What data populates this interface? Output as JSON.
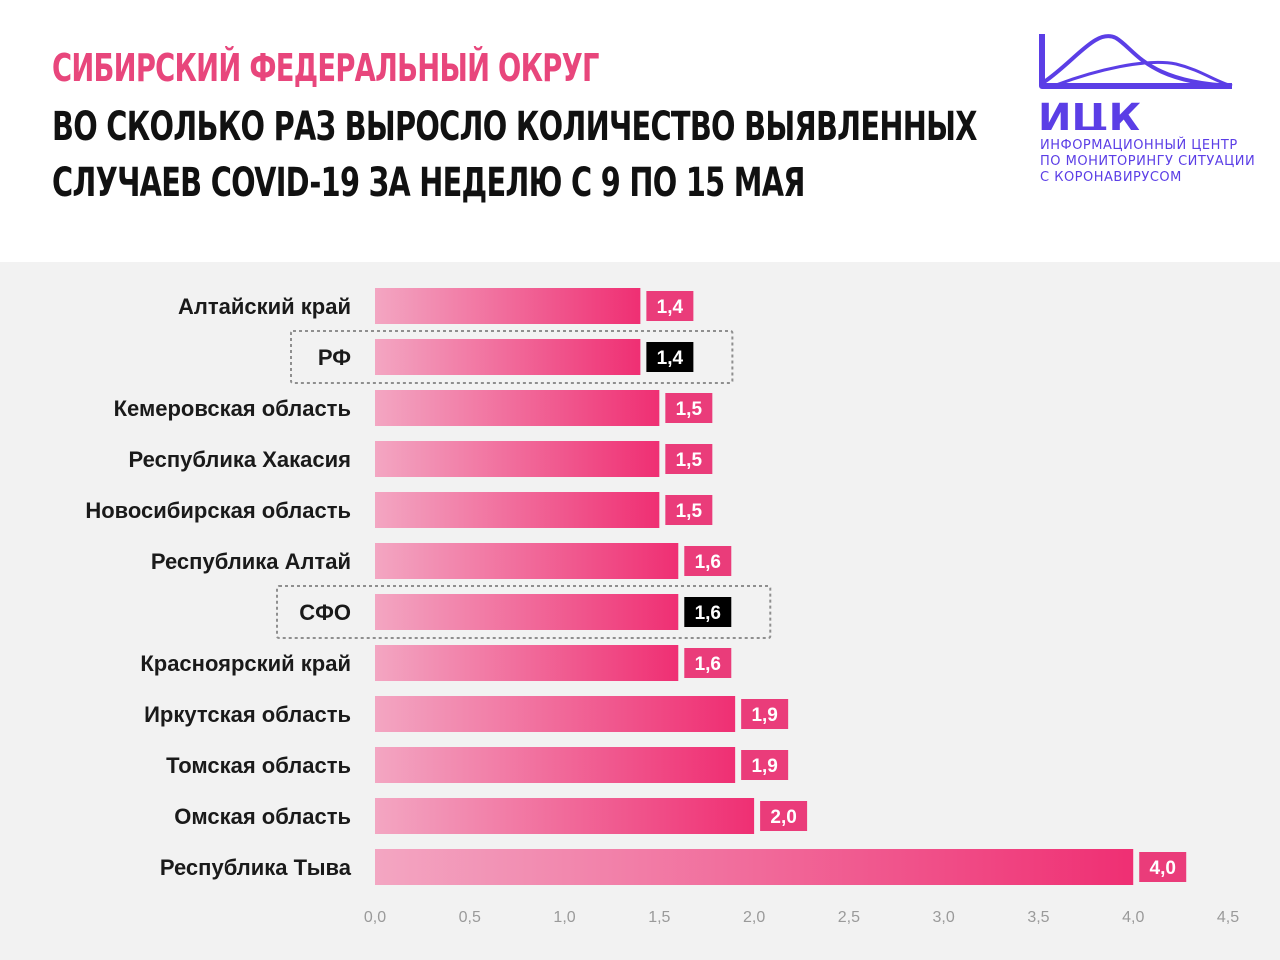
{
  "header": {
    "title_line1": "СИБИРСКИЙ ФЕДЕРАЛЬНЫЙ ОКРУГ",
    "title_line2": "ВО СКОЛЬКО РАЗ ВЫРОСЛО КОЛИЧЕСТВО ВЫЯВЛЕННЫХ",
    "title_line3": "СЛУЧАЕВ COVID-19 ЗА НЕДЕЛЮ С 9 ПО 15 МАЯ"
  },
  "logo": {
    "abbr": "ИЦК",
    "line1": "ИНФОРМАЦИОННЫЙ ЦЕНТР",
    "line2": "ПО МОНИТОРИНГУ СИТУАЦИИ",
    "line3": "С КОРОНАВИРУСОМ",
    "color": "#5b3ee6"
  },
  "colors": {
    "bar_start": "#f3a6c2",
    "bar_end": "#ef2f73",
    "label_bg": "#ea3c7a",
    "highlight_label_bg": "#000000",
    "background": "#f2f2f2"
  },
  "chart_data": {
    "type": "bar",
    "orientation": "horizontal",
    "categories": [
      "Алтайский край",
      "РФ",
      "Кемеровская область",
      "Республика Хакасия",
      "Новосибирская область",
      "Республика Алтай",
      "СФО",
      "Красноярский край",
      "Иркутская область",
      "Томская область",
      "Омская область",
      "Республика Тыва"
    ],
    "values": [
      1.4,
      1.4,
      1.5,
      1.5,
      1.5,
      1.6,
      1.6,
      1.6,
      1.9,
      1.9,
      2.0,
      4.0
    ],
    "value_labels": [
      "1,4",
      "1,4",
      "1,5",
      "1,5",
      "1,5",
      "1,6",
      "1,6",
      "1,6",
      "1,9",
      "1,9",
      "2,0",
      "4,0"
    ],
    "highlighted": [
      "РФ",
      "СФО"
    ],
    "xlim": [
      0,
      4.5
    ],
    "ticks": [
      "0,0",
      "0,5",
      "1,0",
      "1,5",
      "2,0",
      "2,5",
      "3,0",
      "3,5",
      "4,0",
      "4,5"
    ],
    "grid": false,
    "legend": "none"
  }
}
